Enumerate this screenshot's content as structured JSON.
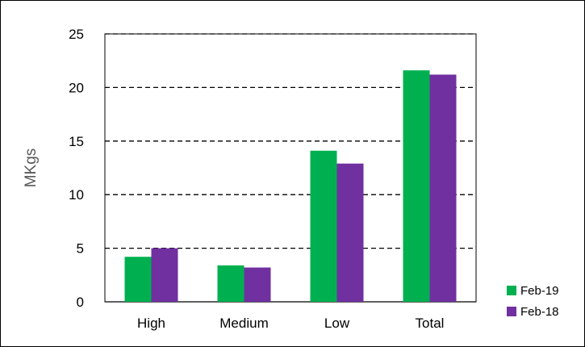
{
  "chart_data": {
    "type": "bar",
    "categories": [
      "High",
      "Medium",
      "Low",
      "Total"
    ],
    "series": [
      {
        "name": "Feb-19",
        "color": "#00b050",
        "values": [
          4.2,
          3.4,
          14.1,
          21.6
        ]
      },
      {
        "name": "Feb-18",
        "color": "#7030a0",
        "values": [
          5.0,
          3.2,
          12.9,
          21.2
        ]
      }
    ],
    "ylabel": "MKgs",
    "xlabel": "",
    "ylim": [
      0,
      25
    ],
    "yticks": [
      0,
      5,
      10,
      15,
      20,
      25
    ],
    "grid": "horizontal dashed",
    "legend": "bottom-right"
  }
}
